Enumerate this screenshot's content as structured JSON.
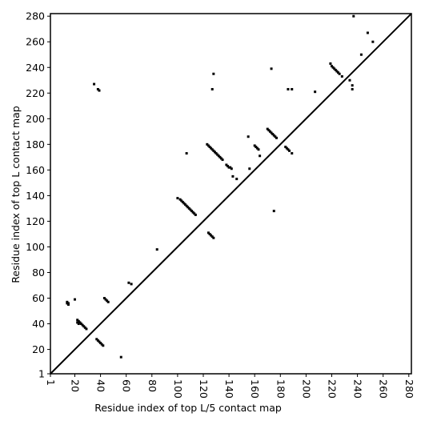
{
  "chart_data": {
    "type": "scatter",
    "x_label": "Residue index of top L/5 contact map",
    "y_label": "Residue index of top L contact map",
    "xlim": [
      1,
      282
    ],
    "ylim": [
      1,
      282
    ],
    "xticks": [
      1,
      20,
      40,
      60,
      80,
      100,
      120,
      140,
      160,
      180,
      200,
      220,
      240,
      260,
      280
    ],
    "yticks": [
      1,
      20,
      40,
      60,
      80,
      100,
      120,
      140,
      160,
      180,
      200,
      220,
      240,
      260,
      280
    ],
    "diagonal": true,
    "series": [
      {
        "color": "#000000",
        "x": [
          14,
          14,
          15,
          15,
          20,
          22,
          23,
          24,
          25,
          26,
          27,
          28,
          29,
          22,
          23,
          37,
          38,
          39,
          40,
          41,
          42,
          43,
          44,
          45,
          46,
          56,
          62,
          64,
          84,
          100,
          102,
          103,
          104,
          105,
          106,
          107,
          108,
          109,
          110,
          111,
          112,
          113,
          114,
          107,
          124,
          125,
          126,
          127,
          128,
          123,
          124,
          125,
          126,
          127,
          128,
          129,
          130,
          131,
          132,
          133,
          134,
          135,
          138,
          139,
          140,
          141,
          142,
          155,
          160,
          161,
          162,
          163,
          170,
          171,
          172,
          173,
          174,
          175,
          176,
          177,
          184,
          185,
          186,
          187,
          189,
          173,
          128,
          127,
          35,
          38,
          39,
          175,
          186,
          189,
          207,
          219,
          220,
          221,
          222,
          223,
          224,
          225,
          226,
          228,
          234,
          236,
          236,
          243,
          248,
          252,
          237,
          143,
          146,
          156,
          164
        ],
        "y": [
          56,
          57,
          55,
          56,
          59,
          43,
          42,
          41,
          40,
          39,
          38,
          37,
          36,
          41,
          40,
          28,
          27,
          26,
          25,
          24,
          23,
          60,
          59,
          58,
          57,
          14,
          72,
          71,
          98,
          138,
          137,
          136,
          135,
          134,
          133,
          132,
          131,
          130,
          129,
          128,
          127,
          126,
          125,
          173,
          111,
          110,
          109,
          108,
          107,
          180,
          179,
          178,
          177,
          176,
          175,
          174,
          173,
          172,
          171,
          170,
          169,
          168,
          164,
          163,
          162,
          162,
          161,
          186,
          179,
          178,
          177,
          176,
          192,
          191,
          190,
          189,
          188,
          187,
          186,
          185,
          178,
          177,
          176,
          175,
          173,
          239,
          235,
          223,
          227,
          223,
          222,
          128,
          223,
          223,
          221,
          243,
          241,
          240,
          239,
          238,
          237,
          236,
          235,
          233,
          230,
          226,
          223,
          250,
          267,
          260,
          280,
          155,
          153,
          161,
          171
        ]
      }
    ]
  }
}
